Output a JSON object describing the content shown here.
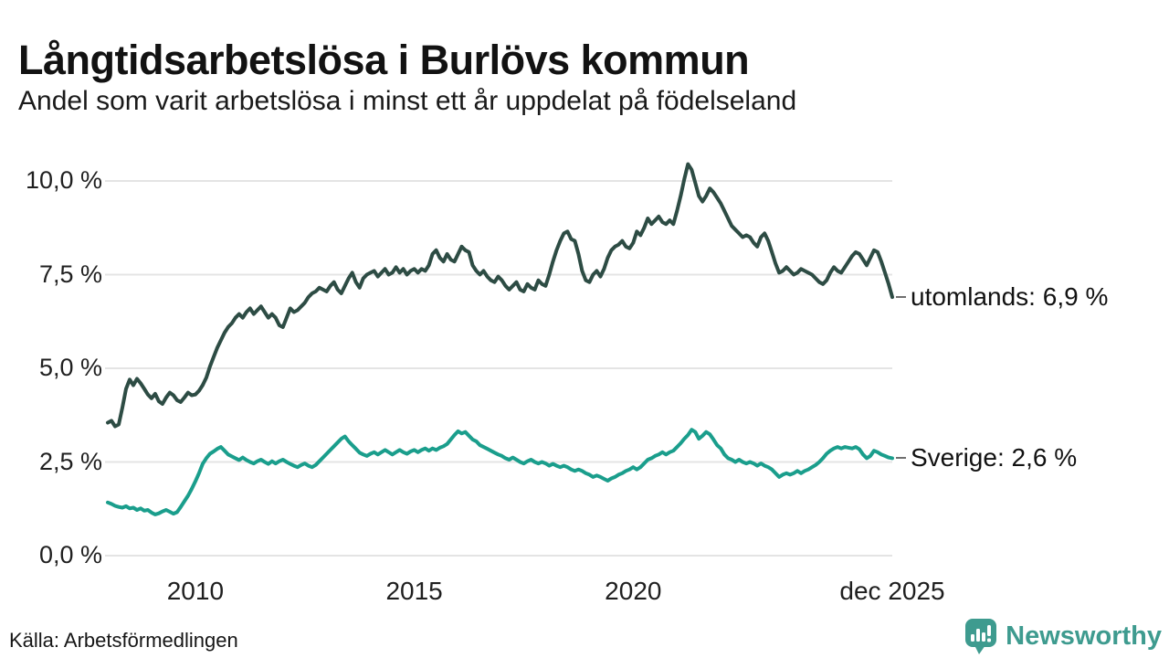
{
  "header": {
    "title": "Långtidsarbetslösa i Burlövs kommun",
    "subtitle": "Andel som varit arbetslösa i minst ett år uppdelat på födelseland"
  },
  "footer": {
    "source": "Källa: Arbetsförmedlingen",
    "brand": "Newsworthy"
  },
  "colors": {
    "utomlands_line": "#2d4c44",
    "sverige_line": "#1a9e8c",
    "gridline": "#e4e4e4",
    "label_dash": "#6f6f6f",
    "brand_teal": "#3e9b8f",
    "text": "#121212"
  },
  "chart_data": {
    "type": "line",
    "x_start": "2008-01",
    "x_end": "2025-12",
    "frequency": "monthly",
    "grid": "horizontal",
    "ylim": [
      0,
      10.5
    ],
    "legend_position": "right-of-line-end",
    "y_ticks": [
      {
        "value": 10,
        "label": "10,0 %"
      },
      {
        "value": 7.5,
        "label": "7,5 %"
      },
      {
        "value": 5,
        "label": "5,0 %"
      },
      {
        "value": 2.5,
        "label": "2,5 %"
      },
      {
        "value": 0,
        "label": "0,0 %"
      }
    ],
    "x_ticks": [
      {
        "label": "2010",
        "month": 24
      },
      {
        "label": "2015",
        "month": 84
      },
      {
        "label": "2020",
        "month": 144
      },
      {
        "label": "dec 2025",
        "month": 215
      }
    ],
    "series": [
      {
        "name": "utomlands",
        "label": "utomlands: 6,9 %",
        "last_value": 6.9,
        "color": "#2d4c44",
        "values": [
          3.55,
          3.6,
          3.45,
          3.5,
          3.95,
          4.45,
          4.7,
          4.55,
          4.72,
          4.6,
          4.45,
          4.3,
          4.2,
          4.32,
          4.12,
          4.05,
          4.22,
          4.35,
          4.28,
          4.15,
          4.1,
          4.22,
          4.35,
          4.28,
          4.3,
          4.4,
          4.55,
          4.75,
          5.05,
          5.3,
          5.55,
          5.75,
          5.95,
          6.1,
          6.2,
          6.35,
          6.45,
          6.35,
          6.5,
          6.6,
          6.45,
          6.55,
          6.65,
          6.5,
          6.35,
          6.45,
          6.35,
          6.15,
          6.1,
          6.35,
          6.6,
          6.5,
          6.55,
          6.65,
          6.75,
          6.9,
          7.0,
          7.05,
          7.15,
          7.1,
          7.05,
          7.2,
          7.3,
          7.1,
          7.0,
          7.2,
          7.4,
          7.55,
          7.3,
          7.15,
          7.4,
          7.5,
          7.55,
          7.6,
          7.45,
          7.55,
          7.65,
          7.5,
          7.55,
          7.7,
          7.55,
          7.65,
          7.5,
          7.6,
          7.65,
          7.55,
          7.65,
          7.6,
          7.75,
          8.05,
          8.15,
          7.95,
          7.85,
          8.05,
          7.9,
          7.85,
          8.05,
          8.25,
          8.15,
          8.1,
          7.75,
          7.6,
          7.5,
          7.6,
          7.45,
          7.35,
          7.3,
          7.45,
          7.35,
          7.2,
          7.1,
          7.2,
          7.3,
          7.1,
          7.05,
          7.25,
          7.15,
          7.1,
          7.35,
          7.25,
          7.2,
          7.5,
          7.85,
          8.15,
          8.4,
          8.6,
          8.65,
          8.45,
          8.4,
          8.05,
          7.6,
          7.35,
          7.3,
          7.5,
          7.6,
          7.45,
          7.65,
          7.95,
          8.15,
          8.25,
          8.3,
          8.4,
          8.25,
          8.2,
          8.35,
          8.65,
          8.55,
          8.75,
          9.0,
          8.85,
          8.95,
          9.05,
          8.9,
          8.85,
          8.95,
          8.85,
          9.2,
          9.6,
          10.05,
          10.45,
          10.3,
          9.95,
          9.6,
          9.45,
          9.6,
          9.8,
          9.7,
          9.55,
          9.4,
          9.2,
          9.0,
          8.8,
          8.7,
          8.6,
          8.5,
          8.55,
          8.5,
          8.35,
          8.25,
          8.5,
          8.6,
          8.4,
          8.1,
          7.8,
          7.55,
          7.6,
          7.7,
          7.6,
          7.5,
          7.55,
          7.65,
          7.6,
          7.55,
          7.5,
          7.4,
          7.3,
          7.25,
          7.35,
          7.55,
          7.7,
          7.6,
          7.55,
          7.7,
          7.85,
          8.0,
          8.1,
          8.05,
          7.9,
          7.75,
          7.95,
          8.15,
          8.1,
          7.85,
          7.55,
          7.25,
          6.9
        ]
      },
      {
        "name": "Sverige",
        "label": "Sverige: 2,6 %",
        "last_value": 2.6,
        "color": "#1a9e8c",
        "values": [
          1.42,
          1.38,
          1.33,
          1.3,
          1.28,
          1.32,
          1.26,
          1.28,
          1.22,
          1.26,
          1.2,
          1.22,
          1.15,
          1.1,
          1.13,
          1.18,
          1.22,
          1.17,
          1.12,
          1.16,
          1.3,
          1.45,
          1.6,
          1.78,
          1.98,
          2.2,
          2.45,
          2.6,
          2.72,
          2.78,
          2.85,
          2.9,
          2.8,
          2.7,
          2.65,
          2.6,
          2.55,
          2.62,
          2.55,
          2.5,
          2.46,
          2.52,
          2.56,
          2.5,
          2.45,
          2.52,
          2.46,
          2.52,
          2.56,
          2.5,
          2.45,
          2.4,
          2.36,
          2.42,
          2.46,
          2.4,
          2.36,
          2.42,
          2.52,
          2.62,
          2.72,
          2.82,
          2.92,
          3.02,
          3.12,
          3.18,
          3.05,
          2.95,
          2.85,
          2.75,
          2.7,
          2.66,
          2.72,
          2.76,
          2.7,
          2.76,
          2.82,
          2.76,
          2.7,
          2.76,
          2.82,
          2.76,
          2.72,
          2.78,
          2.82,
          2.76,
          2.82,
          2.86,
          2.8,
          2.86,
          2.82,
          2.88,
          2.92,
          2.98,
          3.1,
          3.22,
          3.32,
          3.26,
          3.3,
          3.2,
          3.1,
          3.05,
          2.95,
          2.9,
          2.85,
          2.8,
          2.75,
          2.7,
          2.66,
          2.6,
          2.56,
          2.62,
          2.56,
          2.5,
          2.46,
          2.52,
          2.56,
          2.5,
          2.46,
          2.5,
          2.46,
          2.4,
          2.45,
          2.4,
          2.36,
          2.4,
          2.36,
          2.3,
          2.26,
          2.3,
          2.26,
          2.2,
          2.16,
          2.1,
          2.14,
          2.1,
          2.05,
          2.0,
          2.06,
          2.1,
          2.16,
          2.2,
          2.26,
          2.3,
          2.36,
          2.3,
          2.36,
          2.46,
          2.56,
          2.6,
          2.66,
          2.7,
          2.76,
          2.7,
          2.76,
          2.8,
          2.9,
          3.0,
          3.12,
          3.22,
          3.36,
          3.3,
          3.12,
          3.2,
          3.3,
          3.24,
          3.1,
          2.95,
          2.86,
          2.7,
          2.6,
          2.56,
          2.5,
          2.56,
          2.5,
          2.46,
          2.5,
          2.46,
          2.4,
          2.46,
          2.4,
          2.36,
          2.3,
          2.2,
          2.1,
          2.16,
          2.2,
          2.16,
          2.2,
          2.26,
          2.2,
          2.26,
          2.3,
          2.36,
          2.42,
          2.5,
          2.6,
          2.72,
          2.8,
          2.86,
          2.9,
          2.86,
          2.9,
          2.88,
          2.86,
          2.9,
          2.84,
          2.7,
          2.6,
          2.66,
          2.8,
          2.76,
          2.7,
          2.66,
          2.62,
          2.6
        ]
      }
    ]
  }
}
